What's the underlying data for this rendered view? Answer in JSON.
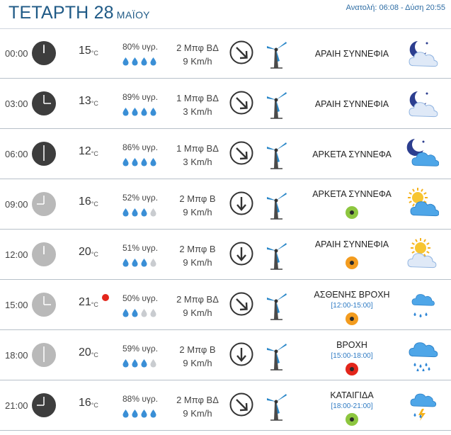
{
  "header": {
    "day": "ΤΕΤΑΡΤΗ 28",
    "month": "ΜΑΪΟΥ",
    "sun": "Ανατολή: 06:08 - Δύση 20:55"
  },
  "rows": [
    {
      "time": "00:00",
      "clock": "dark",
      "temp": "15",
      "unit": "°C",
      "humidity": "80% υγρ.",
      "drops": 4,
      "wind": "2 Μπφ ΒΔ",
      "speed": "9 Km/h",
      "dir": "nw",
      "cond": "ΑΡΑΙΗ ΣΥΝΝΕΦΙΑ",
      "range": "",
      "uv": "",
      "icon": "moon-cloud-icon",
      "warn": false
    },
    {
      "time": "03:00",
      "clock": "dark",
      "temp": "13",
      "unit": "°C",
      "humidity": "89% υγρ.",
      "drops": 4,
      "wind": "1 Μπφ ΒΔ",
      "speed": "3 Km/h",
      "dir": "nw",
      "cond": "ΑΡΑΙΗ ΣΥΝΝΕΦΙΑ",
      "range": "",
      "uv": "",
      "icon": "moon-cloud-icon",
      "warn": false
    },
    {
      "time": "06:00",
      "clock": "dark",
      "temp": "12",
      "unit": "°C",
      "humidity": "86% υγρ.",
      "drops": 4,
      "wind": "1 Μπφ ΒΔ",
      "speed": "3 Km/h",
      "dir": "nw",
      "cond": "ΑΡΚΕΤΑ ΣΥΝΝΕΦΑ",
      "range": "",
      "uv": "",
      "icon": "moon-clouds-icon",
      "warn": false
    },
    {
      "time": "09:00",
      "clock": "light",
      "temp": "16",
      "unit": "°C",
      "humidity": "52% υγρ.",
      "drops": 3,
      "wind": "2 Μπφ Β",
      "speed": "9 Km/h",
      "dir": "n",
      "cond": "ΑΡΚΕΤΑ ΣΥΝΝΕΦΑ",
      "range": "",
      "uv": "#8dc63f",
      "icon": "sun-clouds-icon",
      "warn": false
    },
    {
      "time": "12:00",
      "clock": "light",
      "temp": "20",
      "unit": "°C",
      "humidity": "51% υγρ.",
      "drops": 3,
      "wind": "2 Μπφ Β",
      "speed": "9 Km/h",
      "dir": "n",
      "cond": "ΑΡΑΙΗ ΣΥΝΝΕΦΙΑ",
      "range": "",
      "uv": "#f39c1f",
      "icon": "sun-cloud-icon",
      "warn": false
    },
    {
      "time": "15:00",
      "clock": "light",
      "temp": "21",
      "unit": "°C",
      "humidity": "50% υγρ.",
      "drops": 2,
      "wind": "2 Μπφ ΒΔ",
      "speed": "9 Km/h",
      "dir": "nw",
      "cond": "ΑΣΘΕΝΗΣ ΒΡΟΧΗ",
      "range": "[12:00-15:00]",
      "uv": "#f39c1f",
      "icon": "light-rain-icon",
      "warn": true
    },
    {
      "time": "18:00",
      "clock": "light",
      "temp": "20",
      "unit": "°C",
      "humidity": "59% υγρ.",
      "drops": 3,
      "wind": "2 Μπφ Β",
      "speed": "9 Km/h",
      "dir": "n",
      "cond": "ΒΡΟΧΗ",
      "range": "[15:00-18:00]",
      "uv": "#e3261b",
      "icon": "rain-icon",
      "warn": false
    },
    {
      "time": "21:00",
      "clock": "dark",
      "temp": "16",
      "unit": "°C",
      "humidity": "88% υγρ.",
      "drops": 4,
      "wind": "2 Μπφ ΒΔ",
      "speed": "9 Km/h",
      "dir": "nw",
      "cond": "ΚΑΤΑΙΓΙΔΑ",
      "range": "[18:00-21:00]",
      "uv": "#8dc63f",
      "icon": "thunderstorm-icon",
      "warn": false
    }
  ]
}
